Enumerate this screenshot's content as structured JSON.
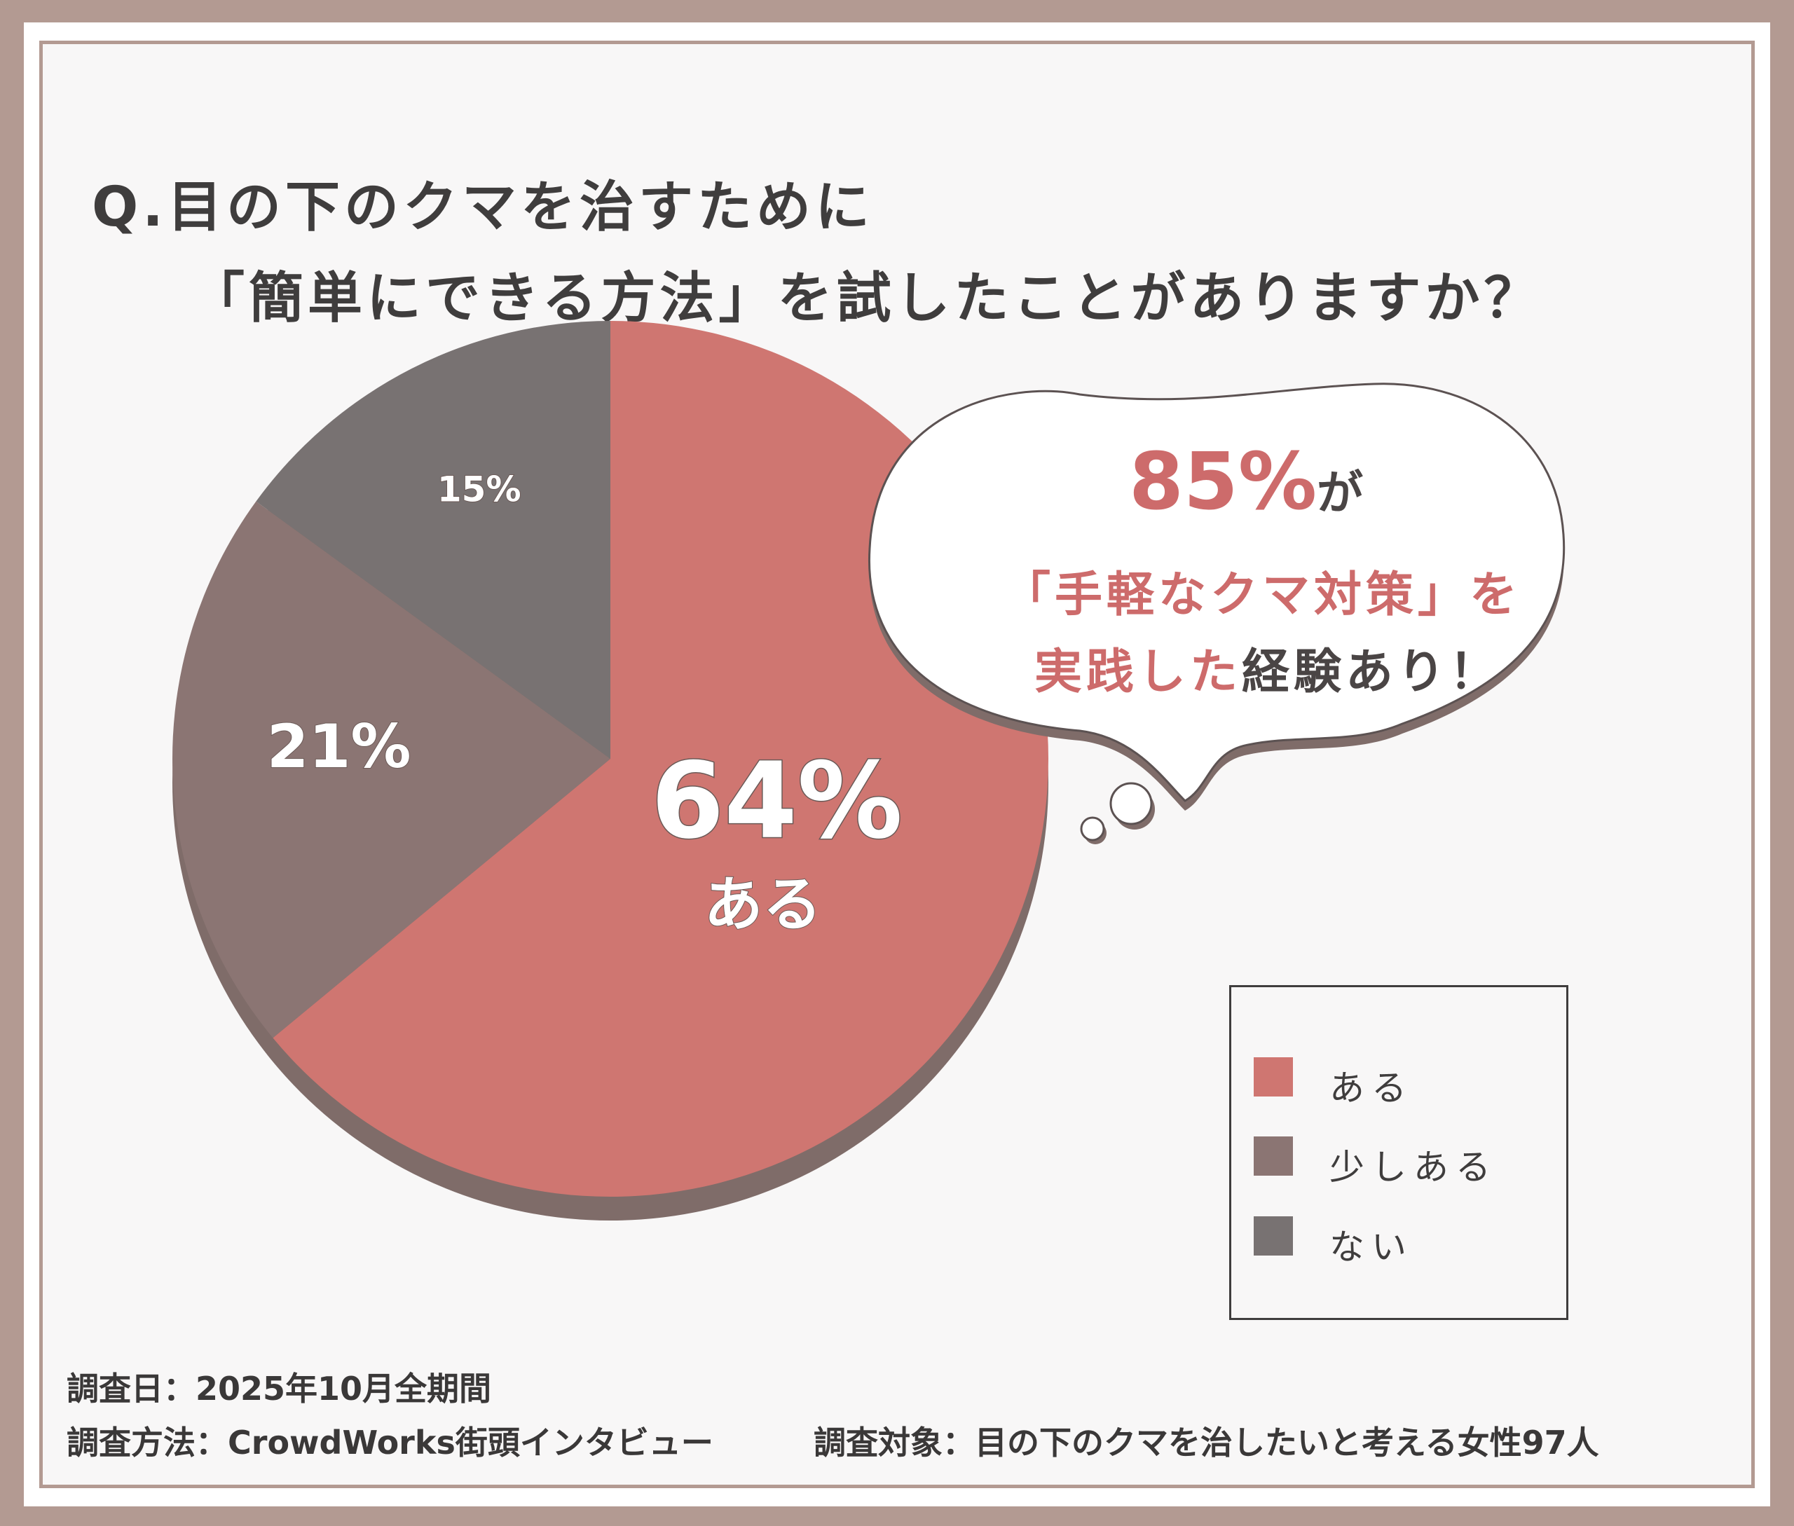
{
  "question": {
    "line1": "Q.目の下のクマを治すために",
    "line2": "「簡単にできる方法」を試したことがありますか？"
  },
  "chart_data": {
    "type": "pie",
    "categories": [
      "ある",
      "少しある",
      "ない"
    ],
    "values": [
      64,
      21,
      15
    ],
    "value_labels": [
      "64%",
      "21%",
      "15%"
    ],
    "colors": [
      "#cf7671",
      "#8b7573",
      "#787272"
    ],
    "legend_placement": "right",
    "center_label": "ある"
  },
  "callout": {
    "percent": "85%",
    "particle": "が",
    "line2": "「手軽なクマ対策」を",
    "line3_pink": "実践した",
    "line3_dark": "経験あり！"
  },
  "footer": {
    "line1": "調査日：2025年10月全期間",
    "line2a": "調査方法：CrowdWorks街頭インタビュー",
    "line2b": "調査対象：目の下のクマを治したいと考える女性97人"
  }
}
